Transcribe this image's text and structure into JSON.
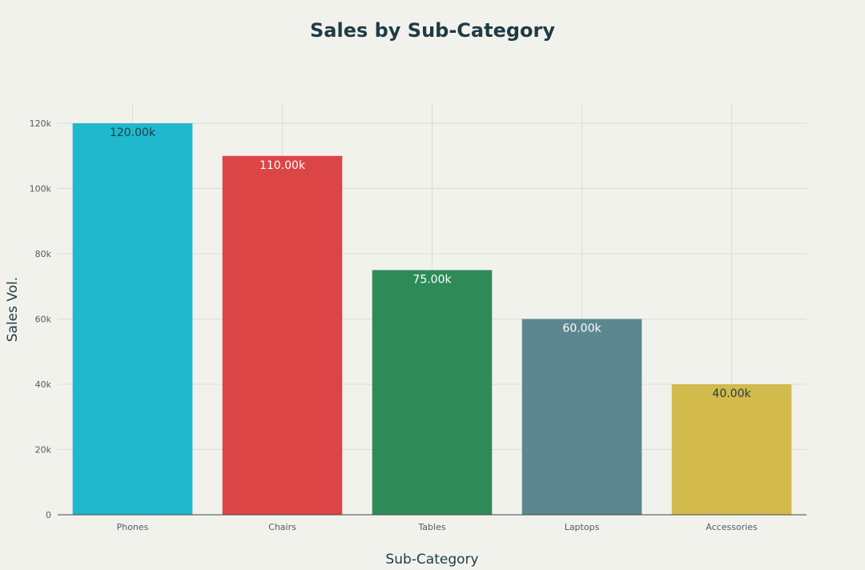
{
  "chart_data": {
    "type": "bar",
    "title": "Sales by Sub-Category",
    "xlabel": "Sub-Category",
    "ylabel": "Sales Vol.",
    "categories": [
      "Phones",
      "Chairs",
      "Tables",
      "Laptops",
      "Accessories"
    ],
    "values": [
      120000,
      110000,
      75000,
      60000,
      40000
    ],
    "data_labels": [
      "120.00k",
      "110.00k",
      "75.00k",
      "60.00k",
      "40.00k"
    ],
    "colors": [
      "#1fb8cd",
      "#db4545",
      "#2e8b57",
      "#5d878f",
      "#d2ba4c"
    ],
    "label_colors": [
      "#1f3b44",
      "#ffffff",
      "#ffffff",
      "#ffffff",
      "#1f3b44"
    ],
    "ylim": [
      0,
      120000
    ],
    "y_ticks": [
      0,
      20000,
      40000,
      60000,
      80000,
      100000,
      120000
    ],
    "y_tick_labels": [
      "0",
      "20k",
      "40k",
      "60k",
      "80k",
      "100k",
      "120k"
    ],
    "grid": true,
    "legend": "none"
  }
}
